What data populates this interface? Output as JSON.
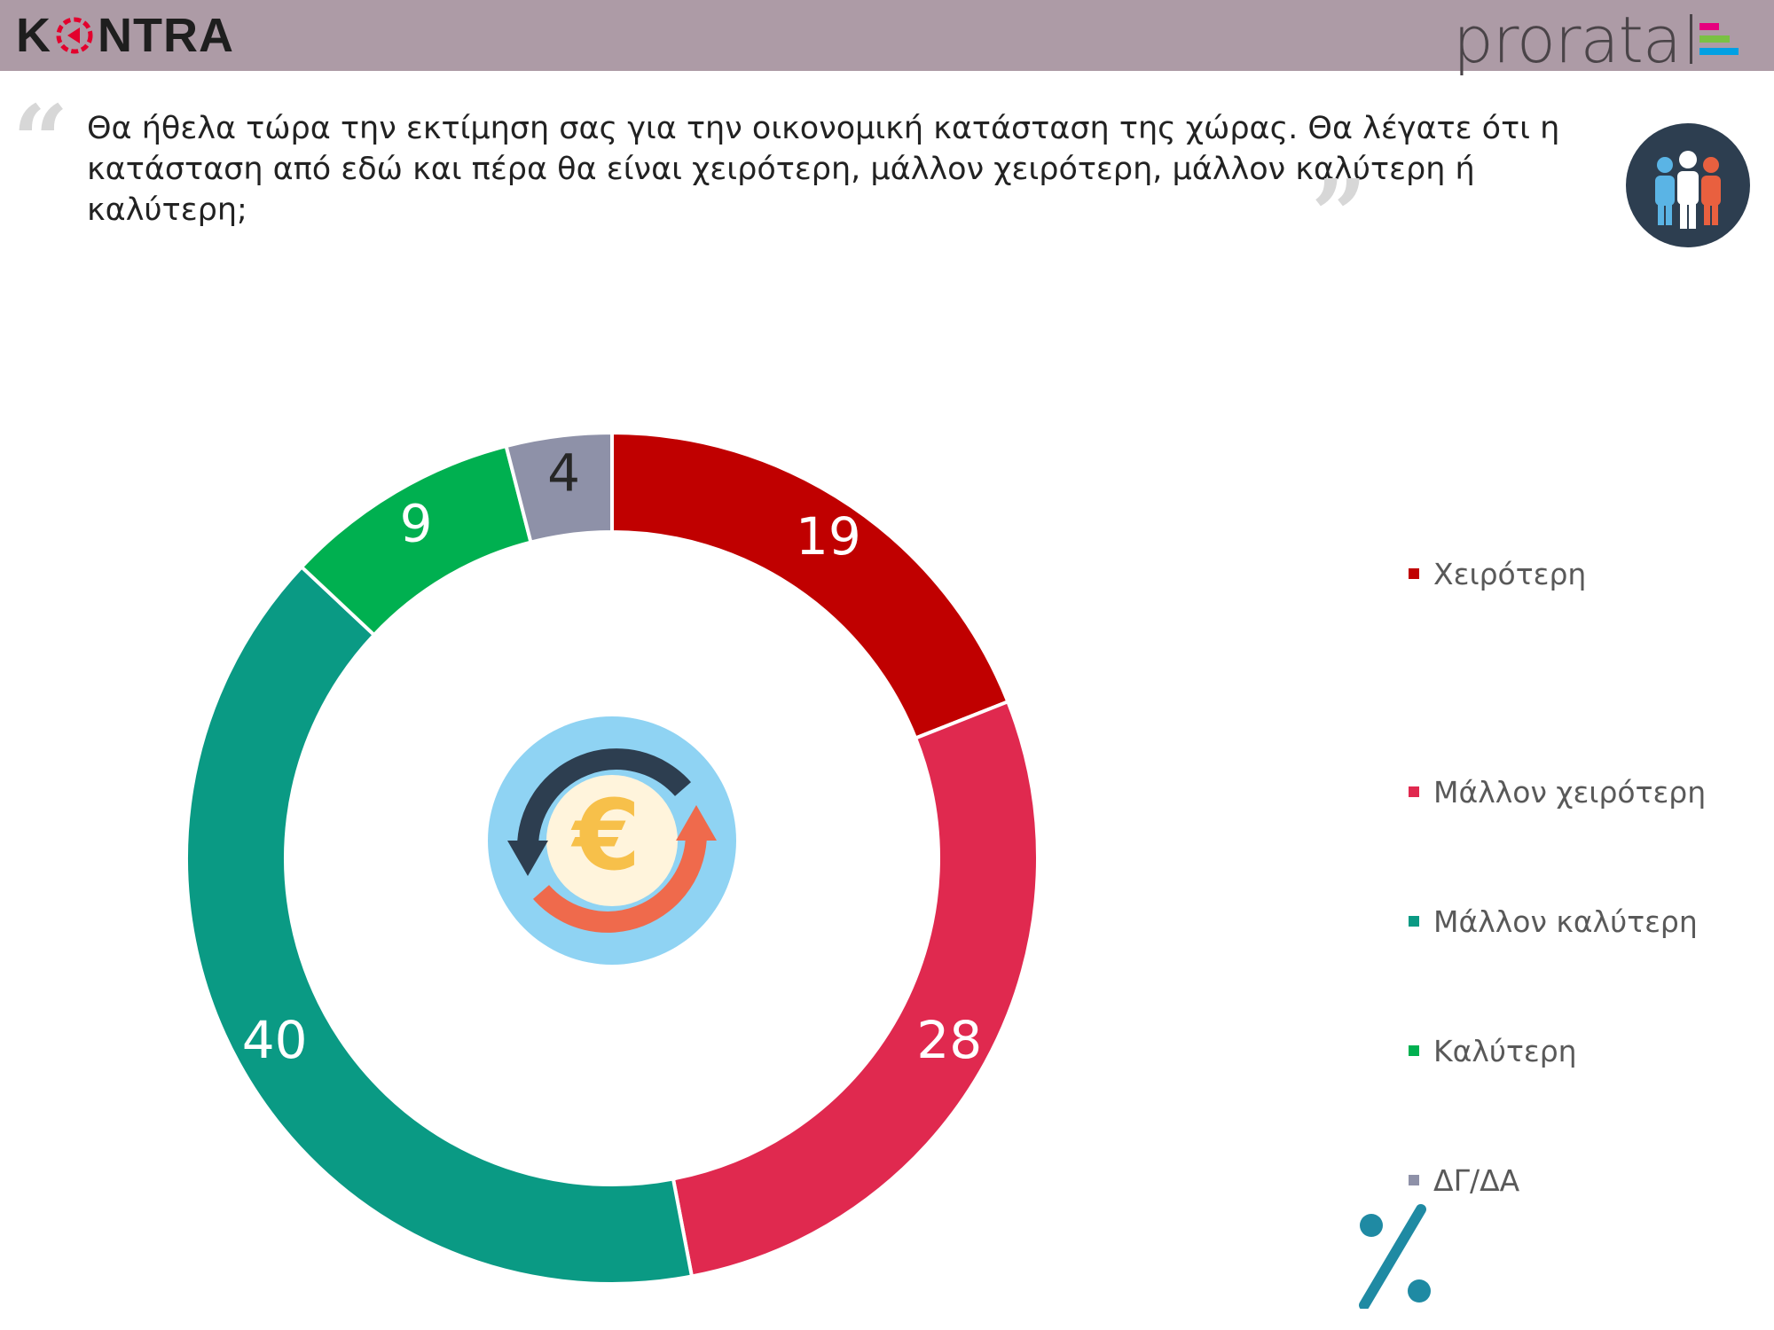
{
  "header": {
    "left_logo": "KONTRA",
    "right_logo": "prorata",
    "prorata_bar_colors": [
      "#e6007e",
      "#7ac143",
      "#00a0e3"
    ]
  },
  "question": {
    "text": "Θα ήθελα τώρα την εκτίμηση σας για την οικονομική κατάσταση της χώρας. Θα λέγατε ότι η κατάσταση από εδώ και πέρα θα είναι χειρότερη, μάλλον χειρότερη, μάλλον καλύτερη ή καλύτερη;"
  },
  "icons": {
    "question_icon": "people-icon",
    "center_icon": "euro-exchange-icon",
    "unit_icon": "percent-icon"
  },
  "chart_data": {
    "type": "pie",
    "donut": true,
    "categories": [
      "Χειρότερη",
      "Μάλλον χειρότερη",
      "Μάλλον καλύτερη",
      "Καλύτερη",
      "ΔΓ/ΔΑ"
    ],
    "values": [
      19,
      28,
      40,
      9,
      4
    ],
    "colors": [
      "#c00000",
      "#e0294f",
      "#0a9a84",
      "#00b050",
      "#8e91a8"
    ],
    "label_colors": [
      "#ffffff",
      "#ffffff",
      "#ffffff",
      "#ffffff",
      "#262626"
    ],
    "legend_position": "right",
    "unit": "%"
  }
}
